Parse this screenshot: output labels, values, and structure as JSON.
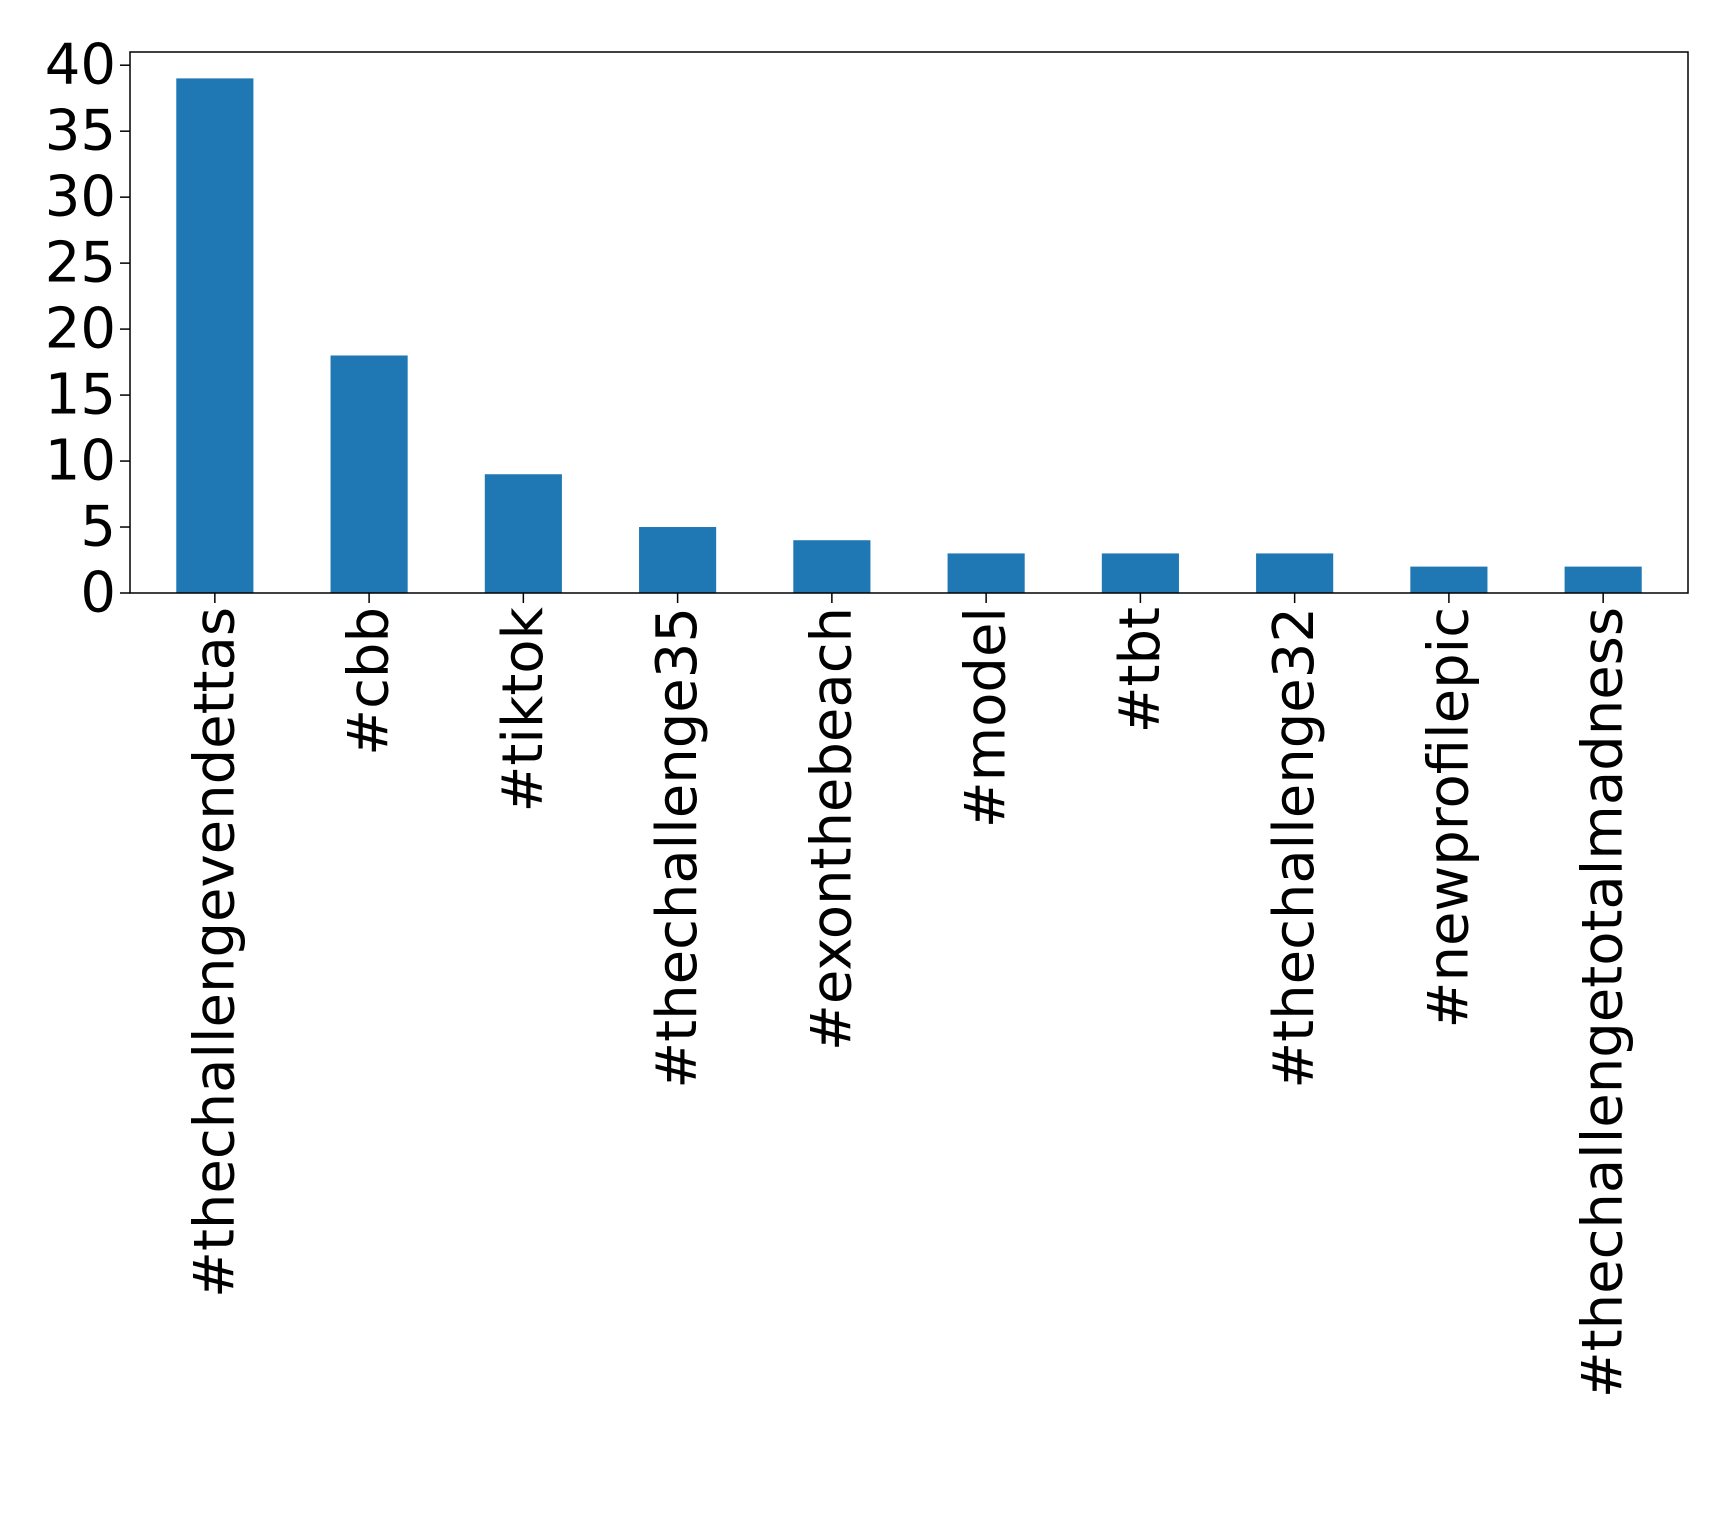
{
  "chart_data": {
    "type": "bar",
    "title": "",
    "xlabel": "",
    "ylabel": "",
    "categories": [
      "#thechallengevendettas",
      "#cbb",
      "#tiktok",
      "#thechallenge35",
      "#exonthebeach",
      "#model",
      "#tbt",
      "#thechallenge32",
      "#newprofilepic",
      "#thechallengetotalmadness"
    ],
    "values": [
      39,
      18,
      9,
      5,
      4,
      3,
      3,
      3,
      2,
      2
    ],
    "ylim": [
      0,
      41
    ],
    "yticks": [
      0,
      5,
      10,
      15,
      20,
      25,
      30,
      35,
      40
    ],
    "bar_color": "#1f77b4",
    "grid": false,
    "legend": "none"
  }
}
